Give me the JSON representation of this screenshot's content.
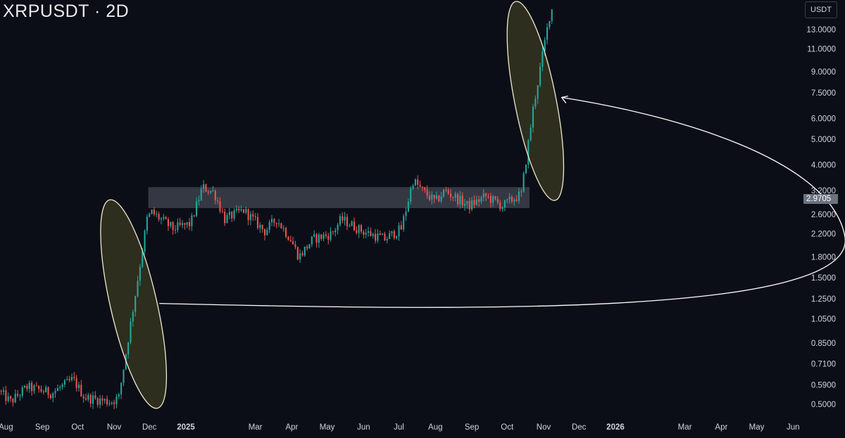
{
  "header": {
    "symbol_title": "XRPUSDT · 2D",
    "currency": "USDT"
  },
  "last_price_label": "2.9705",
  "colors": {
    "up": "#26a69a",
    "down": "#ef5350",
    "background": "#0b0e17",
    "zone_fill": "#5d6170",
    "ellipse_fill": "#3a3a22",
    "ellipse_stroke": "#f2ebcf",
    "arrow": "#ffffff"
  },
  "chart_data": {
    "type": "candlestick",
    "title": "XRPUSDT · 2D",
    "y_scale": "log",
    "ylim": [
      0.45,
      16.0
    ],
    "y_ticks": [
      "13.0000",
      "11.0000",
      "9.0000",
      "7.5000",
      "6.0000",
      "5.0000",
      "4.0000",
      "3.2000",
      "2.6000",
      "2.2000",
      "1.8000",
      "1.5000",
      "1.2500",
      "1.0500",
      "0.8500",
      "0.7100",
      "0.5900",
      "0.5000"
    ],
    "x_ticks": [
      "Aug",
      "Sep",
      "Oct",
      "Nov",
      "Dec",
      "2025",
      "Mar",
      "Apr",
      "May",
      "Jun",
      "Jul",
      "Aug",
      "Sep",
      "Oct",
      "Nov",
      "Dec",
      "2026",
      "Mar",
      "Apr",
      "May",
      "Jun"
    ],
    "x_tick_dates": [
      "2024-08-01",
      "2024-09-01",
      "2024-10-01",
      "2024-11-01",
      "2024-12-01",
      "2025-01-01",
      "2025-03-01",
      "2025-04-01",
      "2025-05-01",
      "2025-06-01",
      "2025-07-01",
      "2025-08-01",
      "2025-09-01",
      "2025-10-01",
      "2025-11-01",
      "2025-12-01",
      "2026-01-01",
      "2026-03-01",
      "2026-04-01",
      "2026-05-01",
      "2026-06-01"
    ],
    "xlim": [
      "2024-07-27",
      "2026-06-08"
    ],
    "key_prices": [
      3.3,
      0.6,
      2.55,
      1.4,
      2.3,
      2.9,
      3.55,
      2.9705,
      15.5
    ],
    "last_price": 2.9705,
    "price_waypoints": [
      [
        "2024-07-27",
        0.56
      ],
      [
        "2024-08-06",
        0.51
      ],
      [
        "2024-08-20",
        0.58
      ],
      [
        "2024-09-10",
        0.55
      ],
      [
        "2024-09-28",
        0.62
      ],
      [
        "2024-10-08",
        0.53
      ],
      [
        "2024-10-30",
        0.51
      ],
      [
        "2024-11-06",
        0.53
      ],
      [
        "2024-11-20",
        1.3
      ],
      [
        "2024-11-30",
        2.5
      ],
      [
        "2024-12-04",
        2.65
      ],
      [
        "2024-12-22",
        2.3
      ],
      [
        "2025-01-06",
        2.4
      ],
      [
        "2025-01-16",
        3.3
      ],
      [
        "2025-01-26",
        3.15
      ],
      [
        "2025-02-04",
        2.5
      ],
      [
        "2025-02-20",
        2.7
      ],
      [
        "2025-03-10",
        2.25
      ],
      [
        "2025-03-20",
        2.5
      ],
      [
        "2025-04-01",
        2.1
      ],
      [
        "2025-04-08",
        1.8
      ],
      [
        "2025-04-20",
        2.1
      ],
      [
        "2025-05-06",
        2.2
      ],
      [
        "2025-05-14",
        2.5
      ],
      [
        "2025-06-01",
        2.25
      ],
      [
        "2025-06-20",
        2.1
      ],
      [
        "2025-07-04",
        2.3
      ],
      [
        "2025-07-14",
        3.5
      ],
      [
        "2025-07-22",
        3.2
      ],
      [
        "2025-08-02",
        2.9
      ],
      [
        "2025-08-10",
        3.2
      ],
      [
        "2025-08-30",
        2.8
      ],
      [
        "2025-09-14",
        3.05
      ],
      [
        "2025-09-28",
        2.8
      ],
      [
        "2025-10-08",
        3.0
      ],
      [
        "2025-10-14",
        3.1
      ],
      [
        "2025-10-24",
        6.5
      ],
      [
        "2025-11-02",
        11.0
      ],
      [
        "2025-11-08",
        15.5
      ]
    ],
    "annotations": {
      "resistance_zone": {
        "x_start": "2024-11-30",
        "x_end": "2025-10-20",
        "y_low": 2.75,
        "y_high": 3.3
      },
      "ellipse_1": {
        "x_start": "2024-10-29",
        "x_end": "2024-12-07",
        "y_low": 0.5,
        "y_high": 2.85
      },
      "ellipse_2": {
        "x_start": "2025-10-09",
        "x_end": "2025-11-10",
        "y_low": 3.05,
        "y_high": 16.0
      },
      "arrow": {
        "from": [
          "2024-12-07",
          1.2
        ],
        "to": [
          "2025-11-08",
          7.2
        ],
        "turn": [
          "2026-07-15",
          2.15
        ]
      }
    }
  }
}
